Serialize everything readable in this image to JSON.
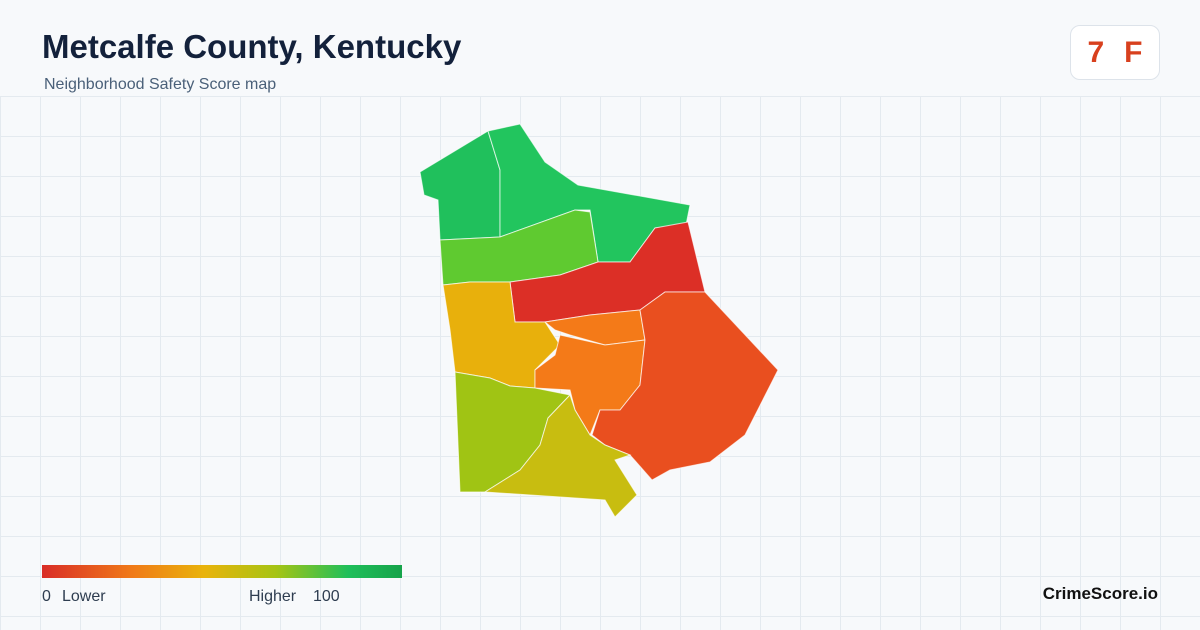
{
  "header": {
    "title": "Metcalfe County, Kentucky",
    "subtitle": "Neighborhood Safety Score map"
  },
  "score": {
    "value": 7,
    "grade": "F"
  },
  "legend": {
    "min": 0,
    "min_label": "Lower",
    "max_label": "Higher",
    "max": 100
  },
  "brand": "CrimeScore.io"
}
